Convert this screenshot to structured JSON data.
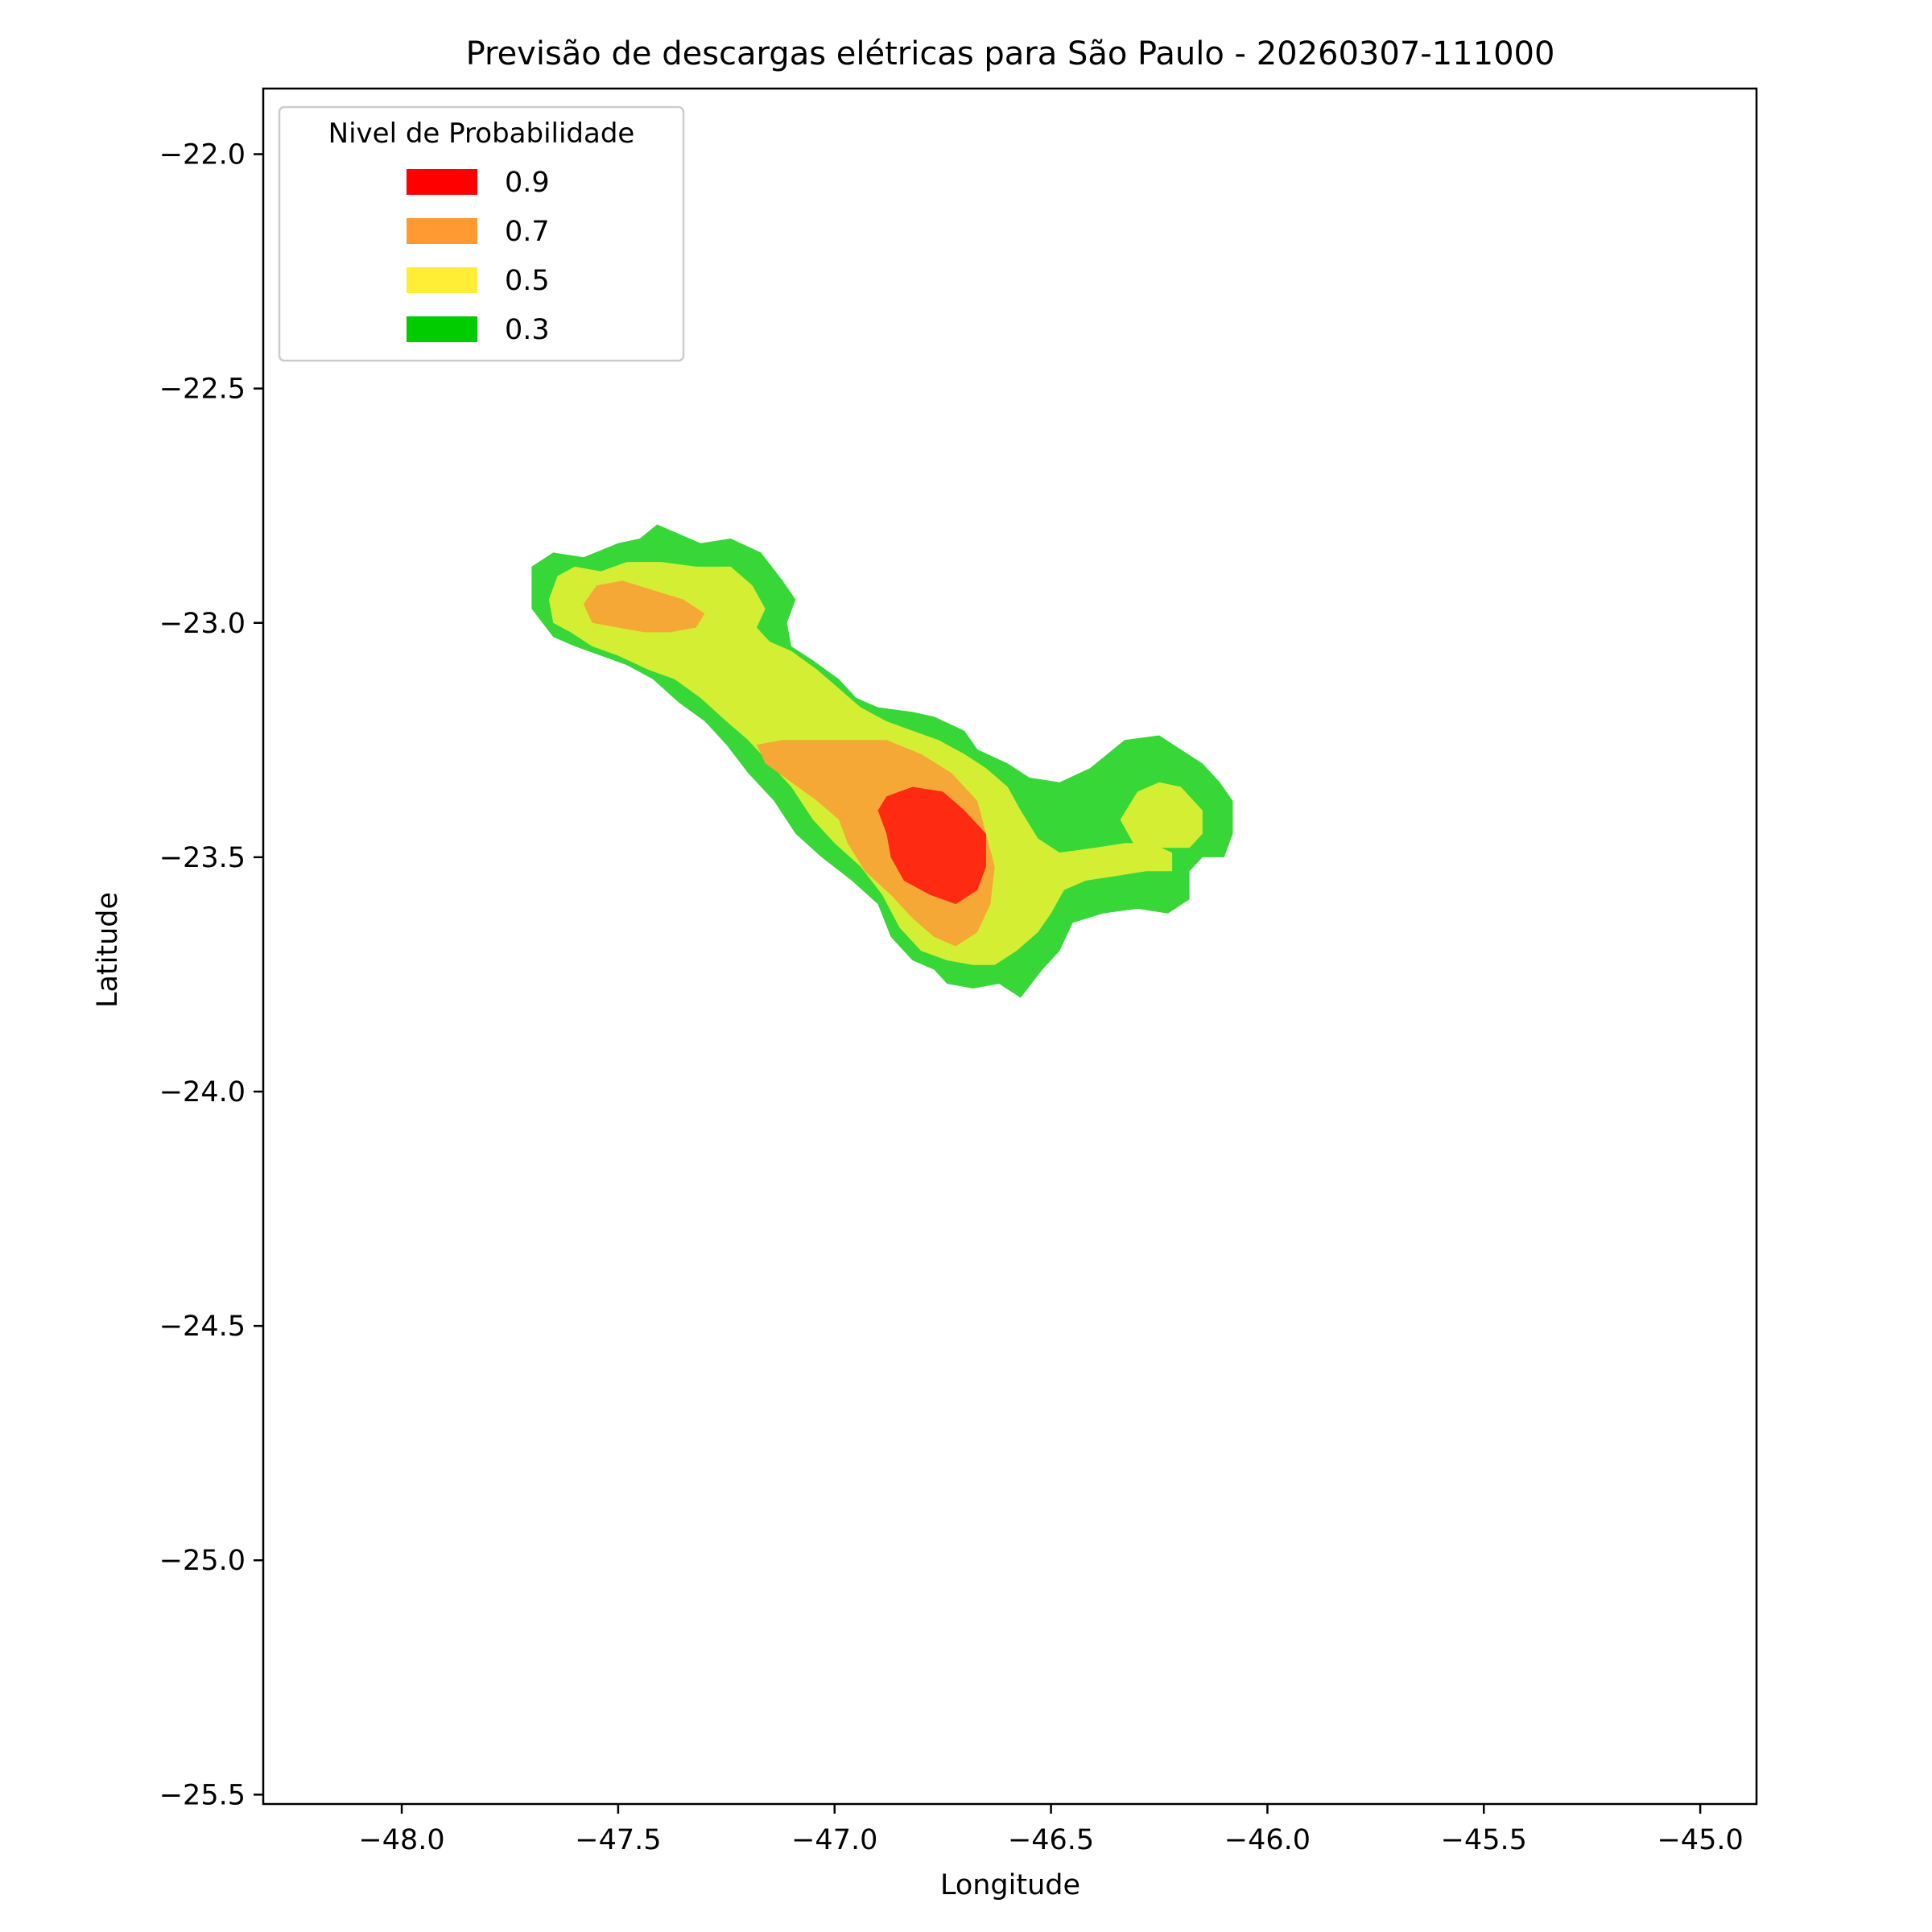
{
  "chart_data": {
    "type": "contour",
    "title": "Previsão de descargas elétricas para São Paulo - 20260307-111000",
    "xlabel": "Longitude",
    "ylabel": "Latitude",
    "xlim": [
      -48.32,
      -44.87
    ],
    "ylim": [
      -25.52,
      -21.86
    ],
    "x_ticks": [
      -48.0,
      -47.5,
      -47.0,
      -46.5,
      -46.0,
      -45.5,
      -45.0
    ],
    "y_ticks": [
      -22.0,
      -22.5,
      -23.0,
      -23.5,
      -24.0,
      -24.5,
      -25.0,
      -25.5
    ],
    "x_tick_labels": [
      "−48.0",
      "−47.5",
      "−47.0",
      "−46.5",
      "−46.0",
      "−45.5",
      "−45.0"
    ],
    "y_tick_labels": [
      "−22.0",
      "−22.5",
      "−23.0",
      "−23.5",
      "−24.0",
      "−24.5",
      "−25.0",
      "−25.5"
    ],
    "grid": false,
    "legend": {
      "title": "Nivel de Probabilidade",
      "position": "top-left",
      "entries": [
        {
          "label": "0.9",
          "color": "#ff0000"
        },
        {
          "label": "0.7",
          "color": "#ff9a33"
        },
        {
          "label": "0.5",
          "color": "#ffee33"
        },
        {
          "label": "0.3",
          "color": "#00cc00"
        }
      ]
    },
    "fill_colors": {
      "0.3": "#37d737",
      "0.5": "#d4ee34",
      "0.7": "#f6a836",
      "0.9": "#ff2a12"
    },
    "levels": [
      {
        "level": "0.3",
        "polygons": [
          [
            [
              -47.7,
              -22.88
            ],
            [
              -47.65,
              -22.85
            ],
            [
              -47.58,
              -22.86
            ],
            [
              -47.5,
              -22.83
            ],
            [
              -47.45,
              -22.82
            ],
            [
              -47.41,
              -22.79
            ],
            [
              -47.36,
              -22.81
            ],
            [
              -47.31,
              -22.83
            ],
            [
              -47.24,
              -22.82
            ],
            [
              -47.17,
              -22.85
            ],
            [
              -47.12,
              -22.91
            ],
            [
              -47.09,
              -22.95
            ],
            [
              -47.11,
              -23.0
            ],
            [
              -47.1,
              -23.05
            ],
            [
              -47.05,
              -23.08
            ],
            [
              -46.99,
              -23.12
            ],
            [
              -46.95,
              -23.16
            ],
            [
              -46.9,
              -23.18
            ],
            [
              -46.82,
              -23.19
            ],
            [
              -46.77,
              -23.2
            ],
            [
              -46.7,
              -23.23
            ],
            [
              -46.67,
              -23.27
            ],
            [
              -46.6,
              -23.3
            ],
            [
              -46.55,
              -23.33
            ],
            [
              -46.48,
              -23.34
            ],
            [
              -46.41,
              -23.31
            ],
            [
              -46.33,
              -23.25
            ],
            [
              -46.25,
              -23.24
            ],
            [
              -46.2,
              -23.27
            ],
            [
              -46.15,
              -23.3
            ],
            [
              -46.11,
              -23.34
            ],
            [
              -46.08,
              -23.38
            ],
            [
              -46.08,
              -23.45
            ],
            [
              -46.1,
              -23.5
            ],
            [
              -46.15,
              -23.5
            ],
            [
              -46.18,
              -23.53
            ],
            [
              -46.18,
              -23.59
            ],
            [
              -46.23,
              -23.62
            ],
            [
              -46.3,
              -23.61
            ],
            [
              -46.38,
              -23.62
            ],
            [
              -46.45,
              -23.64
            ],
            [
              -46.48,
              -23.7
            ],
            [
              -46.52,
              -23.74
            ],
            [
              -46.57,
              -23.8
            ],
            [
              -46.62,
              -23.77
            ],
            [
              -46.68,
              -23.78
            ],
            [
              -46.74,
              -23.77
            ],
            [
              -46.77,
              -23.74
            ],
            [
              -46.82,
              -23.72
            ],
            [
              -46.87,
              -23.67
            ],
            [
              -46.9,
              -23.6
            ],
            [
              -46.96,
              -23.55
            ],
            [
              -47.03,
              -23.5
            ],
            [
              -47.09,
              -23.45
            ],
            [
              -47.14,
              -23.38
            ],
            [
              -47.2,
              -23.32
            ],
            [
              -47.25,
              -23.26
            ],
            [
              -47.3,
              -23.21
            ],
            [
              -47.36,
              -23.17
            ],
            [
              -47.42,
              -23.12
            ],
            [
              -47.48,
              -23.09
            ],
            [
              -47.54,
              -23.07
            ],
            [
              -47.6,
              -23.05
            ],
            [
              -47.65,
              -23.03
            ],
            [
              -47.7,
              -22.97
            ]
          ]
        ]
      },
      {
        "level": "0.5",
        "polygons": [
          [
            [
              -47.66,
              -22.95
            ],
            [
              -47.64,
              -22.9
            ],
            [
              -47.6,
              -22.88
            ],
            [
              -47.54,
              -22.89
            ],
            [
              -47.48,
              -22.87
            ],
            [
              -47.4,
              -22.87
            ],
            [
              -47.32,
              -22.88
            ],
            [
              -47.24,
              -22.88
            ],
            [
              -47.19,
              -22.92
            ],
            [
              -47.16,
              -22.97
            ],
            [
              -47.18,
              -23.01
            ],
            [
              -47.15,
              -23.04
            ],
            [
              -47.1,
              -23.06
            ],
            [
              -47.04,
              -23.1
            ],
            [
              -46.99,
              -23.14
            ],
            [
              -46.94,
              -23.18
            ],
            [
              -46.88,
              -23.21
            ],
            [
              -46.82,
              -23.23
            ],
            [
              -46.76,
              -23.25
            ],
            [
              -46.7,
              -23.28
            ],
            [
              -46.65,
              -23.31
            ],
            [
              -46.6,
              -23.35
            ],
            [
              -46.57,
              -23.4
            ],
            [
              -46.53,
              -23.46
            ],
            [
              -46.48,
              -23.49
            ],
            [
              -46.4,
              -23.48
            ],
            [
              -46.33,
              -23.47
            ],
            [
              -46.27,
              -23.47
            ],
            [
              -46.22,
              -23.49
            ],
            [
              -46.22,
              -23.53
            ],
            [
              -46.28,
              -23.53
            ],
            [
              -46.35,
              -23.54
            ],
            [
              -46.42,
              -23.55
            ],
            [
              -46.47,
              -23.57
            ],
            [
              -46.5,
              -23.62
            ],
            [
              -46.53,
              -23.66
            ],
            [
              -46.58,
              -23.7
            ],
            [
              -46.63,
              -23.73
            ],
            [
              -46.68,
              -23.73
            ],
            [
              -46.74,
              -23.72
            ],
            [
              -46.8,
              -23.7
            ],
            [
              -46.85,
              -23.65
            ],
            [
              -46.89,
              -23.58
            ],
            [
              -46.94,
              -23.52
            ],
            [
              -47.0,
              -23.47
            ],
            [
              -47.05,
              -23.42
            ],
            [
              -47.1,
              -23.35
            ],
            [
              -47.15,
              -23.3
            ],
            [
              -47.2,
              -23.25
            ],
            [
              -47.25,
              -23.21
            ],
            [
              -47.31,
              -23.16
            ],
            [
              -47.37,
              -23.12
            ],
            [
              -47.43,
              -23.1
            ],
            [
              -47.5,
              -23.07
            ],
            [
              -47.56,
              -23.05
            ],
            [
              -47.61,
              -23.02
            ],
            [
              -47.65,
              -23.0
            ]
          ],
          [
            [
              -46.34,
              -23.42
            ],
            [
              -46.3,
              -23.36
            ],
            [
              -46.25,
              -23.34
            ],
            [
              -46.2,
              -23.35
            ],
            [
              -46.15,
              -23.4
            ],
            [
              -46.15,
              -23.45
            ],
            [
              -46.18,
              -23.48
            ],
            [
              -46.25,
              -23.48
            ],
            [
              -46.31,
              -23.47
            ]
          ]
        ]
      },
      {
        "level": "0.7",
        "polygons": [
          [
            [
              -47.58,
              -22.96
            ],
            [
              -47.55,
              -22.92
            ],
            [
              -47.49,
              -22.91
            ],
            [
              -47.42,
              -22.93
            ],
            [
              -47.35,
              -22.95
            ],
            [
              -47.3,
              -22.98
            ],
            [
              -47.32,
              -23.01
            ],
            [
              -47.38,
              -23.02
            ],
            [
              -47.44,
              -23.02
            ],
            [
              -47.5,
              -23.01
            ],
            [
              -47.56,
              -23.0
            ]
          ],
          [
            [
              -47.18,
              -23.26
            ],
            [
              -47.16,
              -23.3
            ],
            [
              -47.1,
              -23.34
            ],
            [
              -47.04,
              -23.38
            ],
            [
              -46.99,
              -23.42
            ],
            [
              -46.97,
              -23.47
            ],
            [
              -46.93,
              -23.53
            ],
            [
              -46.87,
              -23.58
            ],
            [
              -46.82,
              -23.63
            ],
            [
              -46.77,
              -23.67
            ],
            [
              -46.72,
              -23.69
            ],
            [
              -46.67,
              -23.66
            ],
            [
              -46.64,
              -23.6
            ],
            [
              -46.63,
              -23.52
            ],
            [
              -46.65,
              -23.45
            ],
            [
              -46.67,
              -23.38
            ],
            [
              -46.73,
              -23.32
            ],
            [
              -46.8,
              -23.28
            ],
            [
              -46.88,
              -23.25
            ],
            [
              -46.95,
              -23.25
            ],
            [
              -47.05,
              -23.25
            ],
            [
              -47.12,
              -23.25
            ]
          ]
        ]
      },
      {
        "level": "0.9",
        "polygons": [
          [
            [
              -46.9,
              -23.4
            ],
            [
              -46.88,
              -23.45
            ],
            [
              -46.87,
              -23.5
            ],
            [
              -46.84,
              -23.55
            ],
            [
              -46.78,
              -23.58
            ],
            [
              -46.72,
              -23.6
            ],
            [
              -46.67,
              -23.57
            ],
            [
              -46.65,
              -23.52
            ],
            [
              -46.65,
              -23.45
            ],
            [
              -46.7,
              -23.4
            ],
            [
              -46.75,
              -23.36
            ],
            [
              -46.82,
              -23.35
            ],
            [
              -46.88,
              -23.37
            ]
          ]
        ]
      }
    ]
  }
}
